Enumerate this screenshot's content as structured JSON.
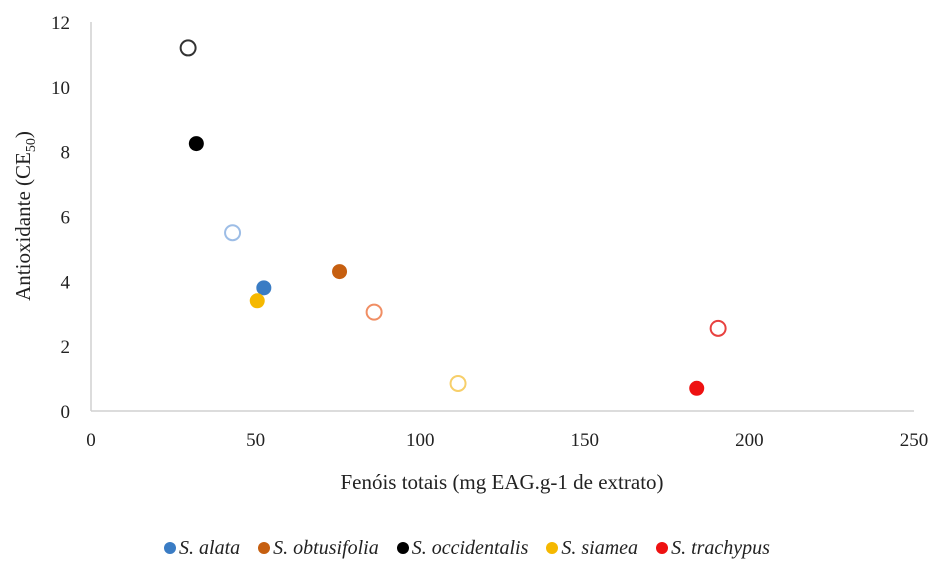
{
  "chart_data": {
    "type": "scatter",
    "xlabel": "Fenóis totais (mg EAG.g-1  de extrato)",
    "ylabel_main": "Antioxidante (CE",
    "ylabel_sub": "50",
    "ylabel_end": ")",
    "xlim": [
      0,
      250
    ],
    "ylim": [
      0,
      12
    ],
    "x_ticks": [
      "0",
      "50",
      "100",
      "150",
      "200",
      "250"
    ],
    "y_ticks": [
      "0",
      "2",
      "4",
      "6",
      "8",
      "10",
      "12"
    ],
    "grid": false,
    "legend_position": "bottom",
    "series": [
      {
        "name": "S. alata",
        "color": "#3a7cc4",
        "light": "#9dbde6",
        "points": [
          {
            "x": 52.5,
            "y": 3.8,
            "filled": true
          },
          {
            "x": 43,
            "y": 5.5,
            "filled": false
          }
        ]
      },
      {
        "name": "S. obtusifolia",
        "color": "#c65f10",
        "light": "#f08e64",
        "points": [
          {
            "x": 75.5,
            "y": 4.3,
            "filled": true
          },
          {
            "x": 86,
            "y": 3.05,
            "filled": false
          }
        ]
      },
      {
        "name": "S. occidentalis",
        "color": "#000000",
        "light": "#333333",
        "points": [
          {
            "x": 32,
            "y": 8.25,
            "filled": true
          },
          {
            "x": 29.5,
            "y": 11.2,
            "filled": false
          }
        ]
      },
      {
        "name": "S. siamea",
        "color": "#f5b800",
        "light": "#f7cf6a",
        "points": [
          {
            "x": 50.5,
            "y": 3.4,
            "filled": true
          },
          {
            "x": 111.5,
            "y": 0.85,
            "filled": false
          }
        ]
      },
      {
        "name": "S. trachypus",
        "color": "#ee1111",
        "light": "#e8413f",
        "points": [
          {
            "x": 184,
            "y": 0.7,
            "filled": true
          },
          {
            "x": 190.5,
            "y": 2.55,
            "filled": false
          }
        ]
      }
    ]
  }
}
